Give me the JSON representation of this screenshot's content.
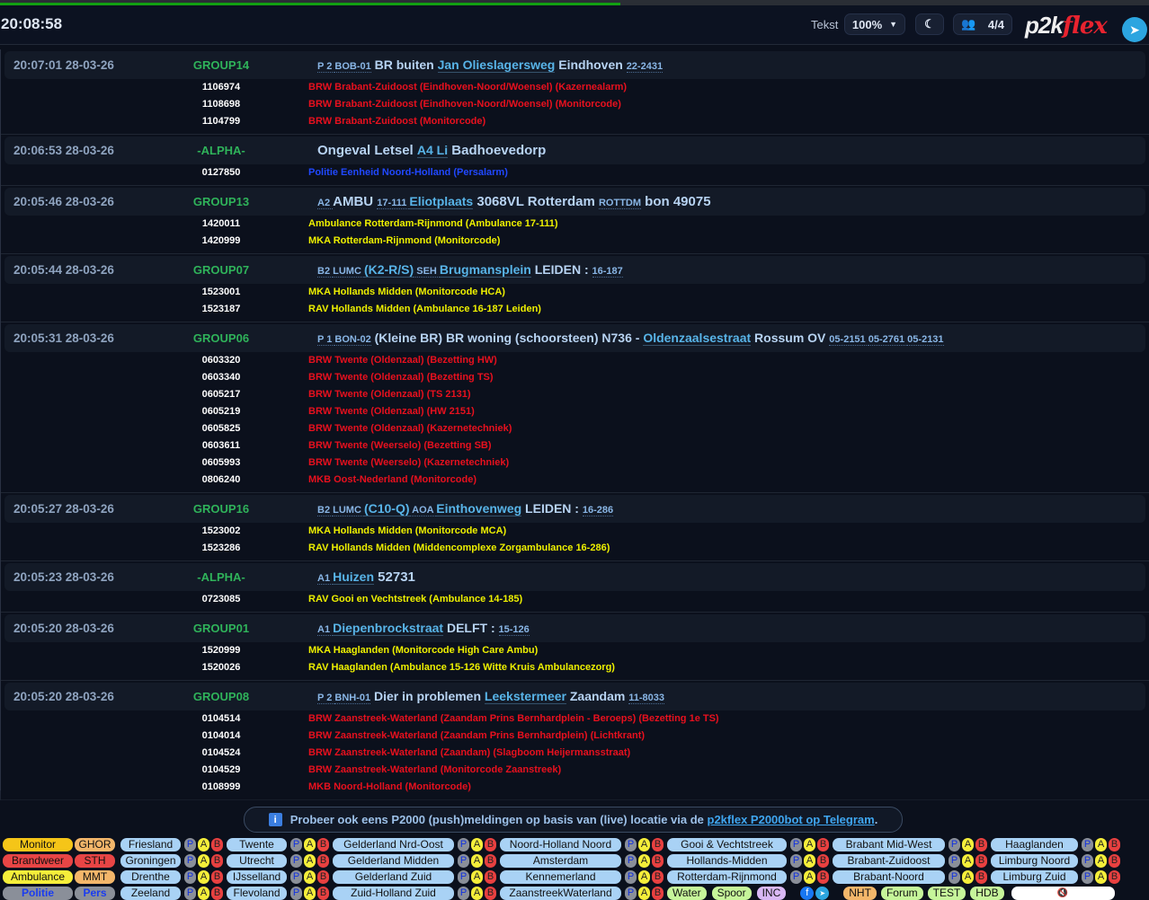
{
  "progress": 0.54,
  "header": {
    "clock": "20:08:58",
    "text_label": "Tekst",
    "zoom": "100%",
    "users": "4/4",
    "logo_main": "p2k",
    "logo_accent": "flex"
  },
  "messages": [
    {
      "time": "20:07:01 28-03-26",
      "group": "GROUP14",
      "title": [
        [
          "P 2 ",
          "sm"
        ],
        [
          "BOB-01",
          "sm"
        ],
        [
          " BR buiten ",
          "n"
        ],
        [
          "Jan Olieslagersweg",
          "lnk"
        ],
        [
          " Eindhoven ",
          "n"
        ],
        [
          "22-2431",
          "sm"
        ]
      ],
      "caps": [
        [
          "1106974",
          "BRW Brabant-Zuidoost (Eindhoven-Noord/Woensel) (Kazernealarm)",
          "red"
        ],
        [
          "1108698",
          "BRW Brabant-Zuidoost (Eindhoven-Noord/Woensel) (Monitorcode)",
          "red"
        ],
        [
          "1104799",
          "BRW Brabant-Zuidoost (Monitorcode)",
          "red"
        ]
      ]
    },
    {
      "time": "20:06:53 28-03-26",
      "group": "-ALPHA-",
      "title": [
        [
          "Ongeval Letsel ",
          "big"
        ],
        [
          "A4 Li",
          "lnk"
        ],
        [
          " Badhoevedorp",
          "big"
        ]
      ],
      "caps": [
        [
          "0127850",
          "Politie Eenheid Noord-Holland (Persalarm)",
          "blue"
        ]
      ]
    },
    {
      "time": "20:05:46 28-03-26",
      "group": "GROUP13",
      "title": [
        [
          "A2 ",
          "sm"
        ],
        [
          "AMBU ",
          "big"
        ],
        [
          "17-111 ",
          "sm"
        ],
        [
          "Eliotplaats",
          "lnk"
        ],
        [
          " 3068VL Rotterdam ",
          "big"
        ],
        [
          "ROTTDM",
          "sm"
        ],
        [
          " bon 49075",
          "big"
        ]
      ],
      "caps": [
        [
          "1420011",
          "Ambulance Rotterdam-Rijnmond (Ambulance 17-111)",
          "yellow"
        ],
        [
          "1420999",
          "MKA Rotterdam-Rijnmond (Monitorcode)",
          "yellow"
        ]
      ]
    },
    {
      "time": "20:05:44 28-03-26",
      "group": "GROUP07",
      "title": [
        [
          "B2 ",
          "sm"
        ],
        [
          "LUMC ",
          "sm"
        ],
        [
          "(K2-R/S)",
          "lnk"
        ],
        [
          " SEH ",
          "sm"
        ],
        [
          "Brugmansplein",
          "lnk"
        ],
        [
          " LEIDEN : ",
          "n"
        ],
        [
          "16-187",
          "sm"
        ]
      ],
      "caps": [
        [
          "1523001",
          "MKA Hollands Midden (Monitorcode HCA)",
          "yellow"
        ],
        [
          "1523187",
          "RAV Hollands Midden (Ambulance 16-187 Leiden)",
          "yellow"
        ]
      ]
    },
    {
      "time": "20:05:31 28-03-26",
      "group": "GROUP06",
      "title": [
        [
          "P 1 ",
          "sm"
        ],
        [
          "BON-02",
          "sm"
        ],
        [
          " (Kleine BR) BR woning (schoorsteen) N736 - ",
          "n"
        ],
        [
          "Oldenzaalsestraat",
          "lnk"
        ],
        [
          " Rossum OV ",
          "n"
        ],
        [
          "05-2151 ",
          "sm"
        ],
        [
          "05-2761 ",
          "sm"
        ],
        [
          "05-2131",
          "sm"
        ]
      ],
      "caps": [
        [
          "0603320",
          "BRW Twente (Oldenzaal) (Bezetting HW)",
          "red"
        ],
        [
          "0603340",
          "BRW Twente (Oldenzaal) (Bezetting TS)",
          "red"
        ],
        [
          "0605217",
          "BRW Twente (Oldenzaal) (TS 2131)",
          "red"
        ],
        [
          "0605219",
          "BRW Twente (Oldenzaal) (HW 2151)",
          "red"
        ],
        [
          "0605825",
          "BRW Twente (Oldenzaal) (Kazernetechniek)",
          "red"
        ],
        [
          "0603611",
          "BRW Twente (Weerselo) (Bezetting SB)",
          "red"
        ],
        [
          "0605993",
          "BRW Twente (Weerselo) (Kazernetechniek)",
          "red"
        ],
        [
          "0806240",
          "MKB Oost-Nederland (Monitorcode)",
          "red"
        ]
      ]
    },
    {
      "time": "20:05:27 28-03-26",
      "group": "GROUP16",
      "title": [
        [
          "B2 ",
          "sm"
        ],
        [
          "LUMC ",
          "sm"
        ],
        [
          "(C10-Q)",
          "lnk"
        ],
        [
          " AOA ",
          "sm"
        ],
        [
          "Einthovenweg",
          "lnk"
        ],
        [
          " LEIDEN : ",
          "n"
        ],
        [
          "16-286",
          "sm"
        ]
      ],
      "caps": [
        [
          "1523002",
          "MKA Hollands Midden (Monitorcode MCA)",
          "yellow"
        ],
        [
          "1523286",
          "RAV Hollands Midden (Middencomplexe Zorgambulance 16-286)",
          "yellow"
        ]
      ]
    },
    {
      "time": "20:05:23 28-03-26",
      "group": "-ALPHA-",
      "title": [
        [
          "A1 ",
          "sm"
        ],
        [
          "Huizen",
          "lnk"
        ],
        [
          " 52731",
          "big"
        ]
      ],
      "caps": [
        [
          "0723085",
          "RAV Gooi en Vechtstreek (Ambulance 14-185)",
          "yellow"
        ]
      ]
    },
    {
      "time": "20:05:20 28-03-26",
      "group": "GROUP01",
      "title": [
        [
          "A1 ",
          "sm"
        ],
        [
          "Diepenbrockstraat",
          "lnk"
        ],
        [
          " DELFT : ",
          "n"
        ],
        [
          "15-126",
          "sm"
        ]
      ],
      "caps": [
        [
          "1520999",
          "MKA Haaglanden (Monitorcode High Care Ambu)",
          "yellow"
        ],
        [
          "1520026",
          "RAV Haaglanden (Ambulance 15-126 Witte Kruis Ambulancezorg)",
          "yellow"
        ]
      ]
    },
    {
      "time": "20:05:20 28-03-26",
      "group": "GROUP08",
      "title": [
        [
          "P 2 ",
          "sm"
        ],
        [
          "BNH-01",
          "sm"
        ],
        [
          " Dier in problemen ",
          "n"
        ],
        [
          "Leekstermeer",
          "lnk"
        ],
        [
          " Zaandam ",
          "n"
        ],
        [
          "11-8033",
          "sm"
        ]
      ],
      "caps": [
        [
          "0104514",
          "BRW Zaanstreek-Waterland (Zaandam Prins Bernhardplein - Beroeps) (Bezetting 1e TS)",
          "red"
        ],
        [
          "0104014",
          "BRW Zaanstreek-Waterland (Zaandam Prins Bernhardplein) (Lichtkrant)",
          "red"
        ],
        [
          "0104524",
          "BRW Zaanstreek-Waterland (Zaandam) (Slagboom Heijermansstraat)",
          "red"
        ],
        [
          "0104529",
          "BRW Zaanstreek-Waterland (Monitorcode Zaanstreek)",
          "red"
        ],
        [
          "0108999",
          "MKB Noord-Holland (Monitorcode)",
          "red"
        ]
      ]
    }
  ],
  "colors": {
    "red": "#e8101e",
    "yellow": "#eef000",
    "blue": "#2048ff"
  },
  "info": {
    "text": "Probeer ook eens P2000 (push)meldingen op basis van (live) locatie via de ",
    "link": "p2kflex P2000bot op Telegram",
    "end": "."
  },
  "footer": {
    "types": [
      [
        "Monitor",
        "#f5c518",
        "#111"
      ],
      [
        "GHOR",
        "#f3b66a",
        "#111"
      ],
      [
        "Brandweer",
        "#e84545",
        "#111"
      ],
      [
        "STH",
        "#e84545",
        "#111"
      ],
      [
        "Ambulance",
        "#f5ee3a",
        "#111"
      ],
      [
        "MMT",
        "#f3b66a",
        "#111"
      ],
      [
        "Politie",
        "#8a8f99",
        "#1a3cf0"
      ],
      [
        "Pers",
        "#8a8f99",
        "#1a3cf0"
      ]
    ],
    "regions": [
      [
        "Friesland",
        "Twente",
        "Gelderland Nrd-Oost",
        "Noord-Holland Noord",
        "Gooi & Vechtstreek",
        "Brabant Mid-West",
        "Haaglanden"
      ],
      [
        "Groningen",
        "Utrecht",
        "Gelderland Midden",
        "Amsterdam",
        "Hollands-Midden",
        "Brabant-Zuidoost",
        "Limburg Noord"
      ],
      [
        "Drenthe",
        "IJsselland",
        "Gelderland Zuid",
        "Kennemerland",
        "Rotterdam-Rijnmond",
        "Brabant-Noord",
        "Limburg Zuid"
      ],
      [
        "Zeeland",
        "Flevoland",
        "Zuid-Holland Zuid",
        "ZaanstreekWaterland"
      ]
    ],
    "pab": [
      "P",
      "A",
      "B"
    ],
    "extras": [
      [
        "Water",
        "#c6f59a"
      ],
      [
        "Spoor",
        "#c6f59a"
      ],
      [
        "INC",
        "#d9b8f5"
      ]
    ],
    "extras2": [
      [
        "NHT",
        "#f3b66a"
      ],
      [
        "Forum",
        "#c6f59a"
      ],
      [
        "TEST",
        "#c6f59a"
      ],
      [
        "HDB",
        "#c6f59a"
      ]
    ]
  }
}
